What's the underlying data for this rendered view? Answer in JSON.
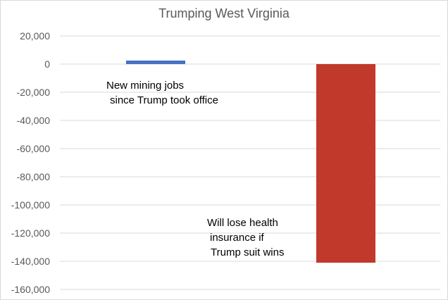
{
  "chart_data": {
    "type": "bar",
    "title": "Trumping West Virginia",
    "categories": [
      "",
      ""
    ],
    "values": [
      2500,
      -141000
    ],
    "colors": [
      "#4472c4",
      "#c0392b"
    ],
    "ylim": [
      -160000,
      20000
    ],
    "yticks": [
      "20,000",
      "0",
      "-20,000",
      "-40,000",
      "-60,000",
      "-80,000",
      "-100,000",
      "-120,000",
      "-140,000",
      "-160,000"
    ],
    "ytick_values": [
      20000,
      0,
      -20000,
      -40000,
      -60000,
      -80000,
      -100000,
      -120000,
      -140000,
      -160000
    ],
    "grid": true,
    "annotations": [
      {
        "lines": [
          "New mining jobs",
          "since Trump took office"
        ]
      },
      {
        "lines": [
          "Will lose health",
          "insurance if",
          "Trump suit wins"
        ]
      }
    ]
  }
}
